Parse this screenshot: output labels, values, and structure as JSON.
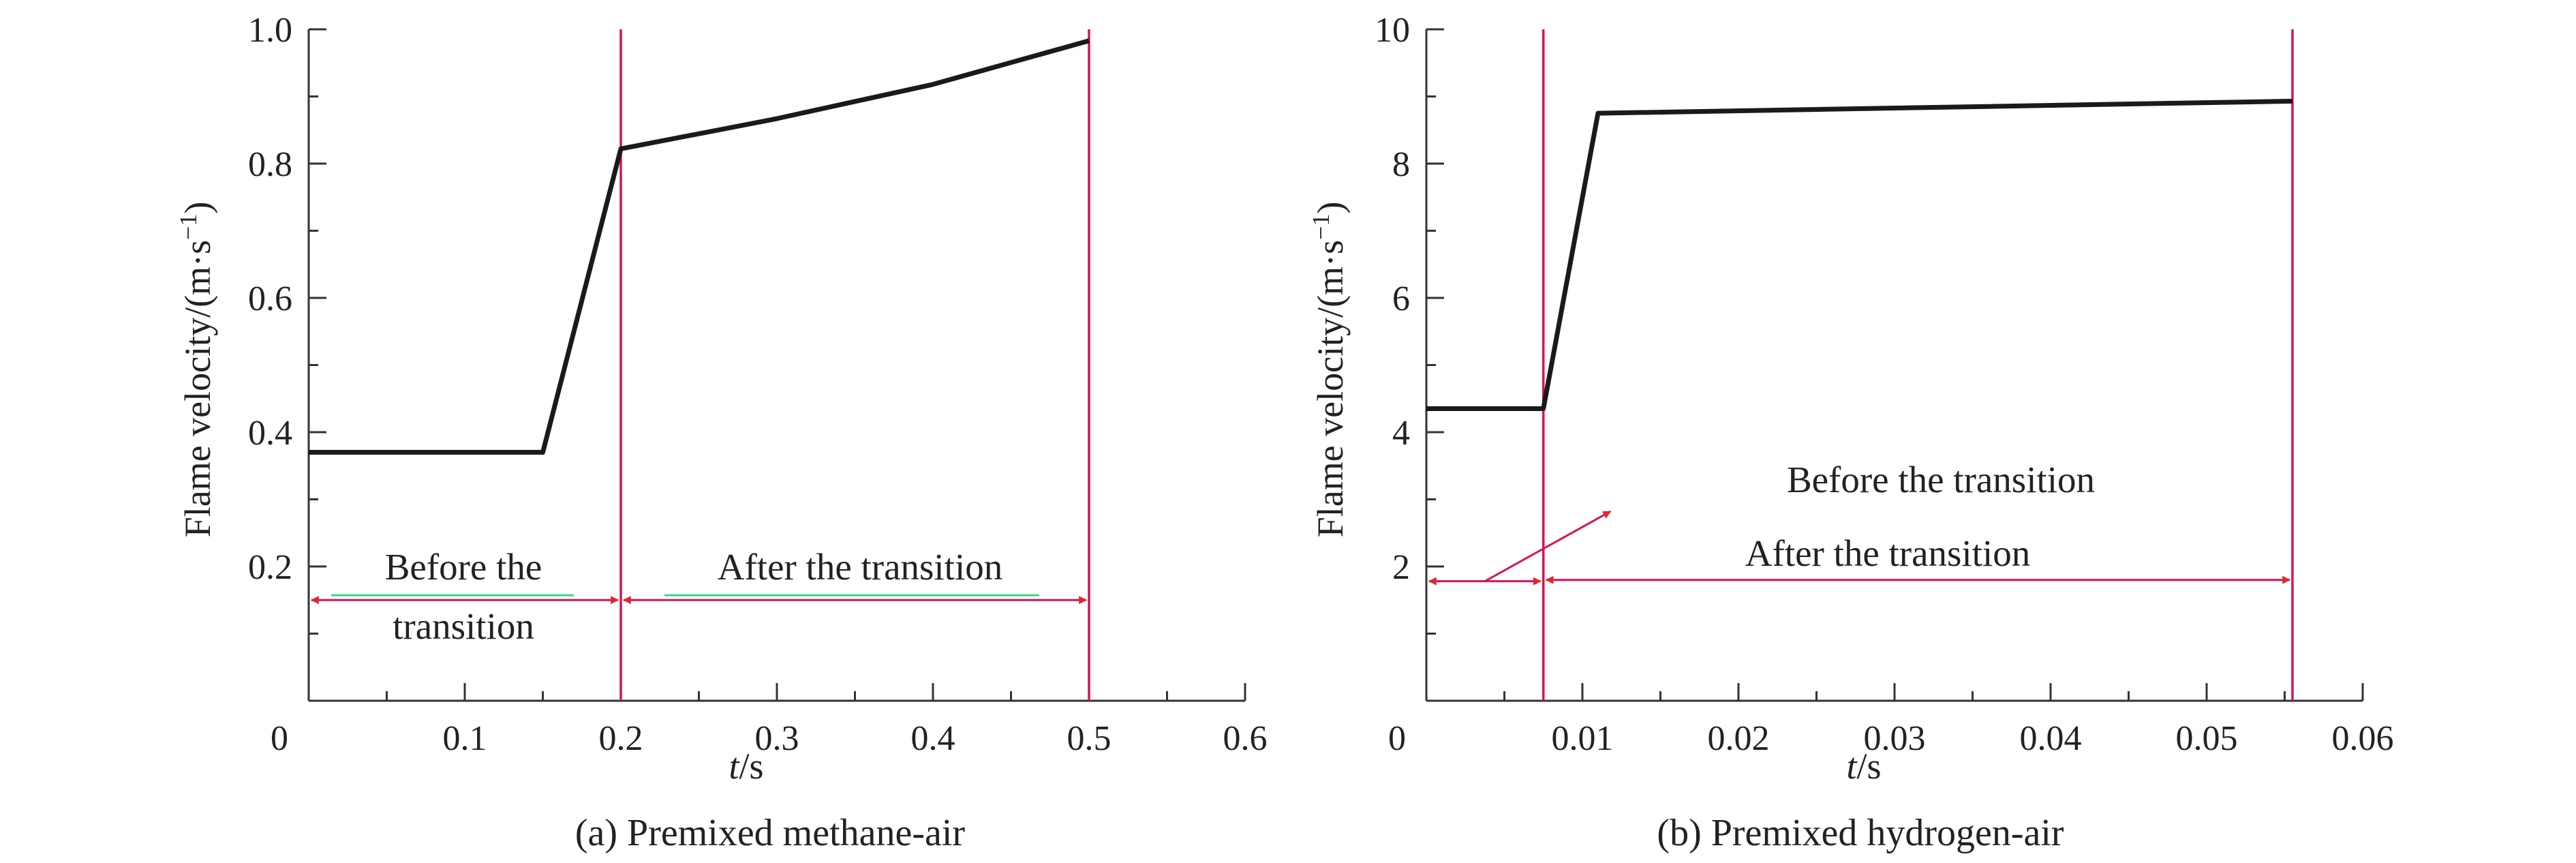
{
  "chart_data": [
    {
      "type": "line",
      "caption": "(a) Premixed methane-air",
      "xlabel_italic": "t",
      "xlabel_unit": "/s",
      "ylabel": "Flame velocity/(m·s",
      "ylabel_sup": "−1",
      "ylabel_close": ")",
      "xlim": [
        0,
        0.6
      ],
      "ylim": [
        0,
        1.0
      ],
      "xticks": [
        0,
        0.1,
        0.2,
        0.3,
        0.4,
        0.5,
        0.6
      ],
      "xtick_labels": [
        "0",
        "0.1",
        "0.2",
        "0.3",
        "0.4",
        "0.5",
        "0.6"
      ],
      "yticks": [
        0.2,
        0.4,
        0.6,
        0.8,
        1.0
      ],
      "ytick_labels": [
        "0.2",
        "0.4",
        "0.6",
        "0.8",
        "1.0"
      ],
      "series": [
        {
          "x": [
            0,
            0.15,
            0.2,
            0.3,
            0.4,
            0.5
          ],
          "y": [
            0.37,
            0.37,
            0.822,
            0.867,
            0.918,
            0.983
          ]
        }
      ],
      "transition_lines": [
        0.2,
        0.5
      ],
      "annotations": [
        {
          "text": "Before the",
          "x_from": 0,
          "x_to": 0.2,
          "y": 0.15
        },
        {
          "text": "transition"
        },
        {
          "text": "After the transition",
          "x_from": 0.2,
          "x_to": 0.5,
          "y": 0.15
        }
      ]
    },
    {
      "type": "line",
      "caption": "(b) Premixed hydrogen-air",
      "xlabel_italic": "t",
      "xlabel_unit": "/s",
      "ylabel": "Flame velocity/(m·s",
      "ylabel_sup": "−1",
      "ylabel_close": ")",
      "xlim": [
        0,
        0.06
      ],
      "ylim": [
        0,
        10
      ],
      "xticks": [
        0,
        0.01,
        0.02,
        0.03,
        0.04,
        0.05,
        0.06
      ],
      "xtick_labels": [
        "0",
        "0.01",
        "0.02",
        "0.03",
        "0.04",
        "0.05",
        "0.06"
      ],
      "yticks": [
        2,
        4,
        6,
        8,
        10
      ],
      "ytick_labels": [
        "2",
        "4",
        "6",
        "8",
        "10"
      ],
      "series": [
        {
          "x": [
            0,
            0.0075,
            0.011,
            0.0555
          ],
          "y": [
            4.35,
            4.35,
            8.75,
            8.93
          ]
        }
      ],
      "transition_lines": [
        0.0075,
        0.0555
      ],
      "annotations": [
        {
          "text": "Before the transition",
          "x_from": 0,
          "x_to": 0.0075,
          "y": 1.78,
          "pointer_to": [
            0.0118,
            2.82
          ]
        },
        {
          "text": "After the transition",
          "x_from": 0.0075,
          "x_to": 0.0555,
          "y": 1.8
        }
      ]
    }
  ],
  "colors": {
    "series_line": "#1a1a1a",
    "axis": "#333333",
    "transition_line": "#d4145a",
    "arrow_line": "#d4145a",
    "arrow_head": "#e3262b",
    "highlight_underline": "#3fd68c"
  }
}
